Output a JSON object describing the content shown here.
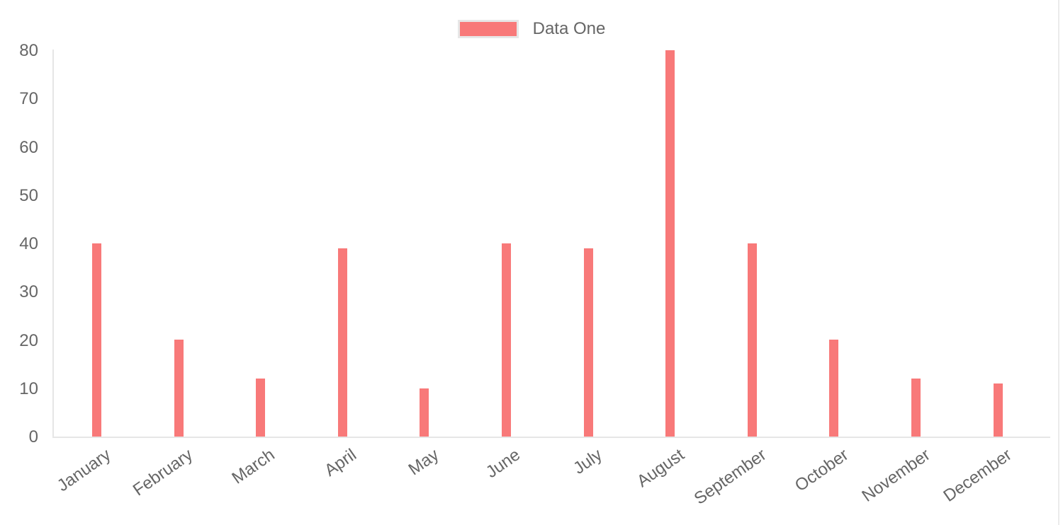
{
  "chart_data": {
    "type": "bar",
    "title": "",
    "xlabel": "",
    "ylabel": "",
    "categories": [
      "January",
      "February",
      "March",
      "April",
      "May",
      "June",
      "July",
      "August",
      "September",
      "October",
      "November",
      "December"
    ],
    "series": [
      {
        "name": "Data One",
        "color": "#f87979",
        "values": [
          40,
          20,
          12,
          39,
          10,
          40,
          39,
          80,
          40,
          20,
          12,
          11
        ]
      }
    ],
    "ylim": [
      0,
      80
    ],
    "y_tick_step": 10,
    "y_ticks": [
      80,
      70,
      60,
      50,
      40,
      30,
      20,
      10,
      0
    ],
    "grid": false,
    "legend_position": "top",
    "x_label_rotation_deg": -35
  },
  "legend": {
    "label": "Data One"
  },
  "colors": {
    "bar_fill": "#f87979",
    "legend_swatch_border": "#e7e7e7",
    "axis_line": "#e6e6e6",
    "tick_text": "#666666",
    "background": "#ffffff"
  }
}
